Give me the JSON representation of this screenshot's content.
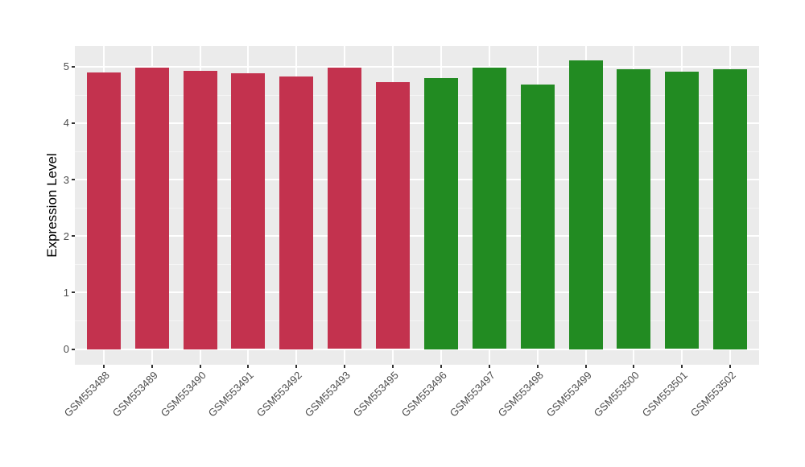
{
  "chart_data": {
    "type": "bar",
    "title": "",
    "xlabel": "",
    "ylabel": "Expression Level",
    "categories": [
      "GSM553488",
      "GSM553489",
      "GSM553490",
      "GSM553491",
      "GSM553492",
      "GSM553493",
      "GSM553495",
      "GSM553496",
      "GSM553497",
      "GSM553498",
      "GSM553499",
      "GSM553500",
      "GSM553501",
      "GSM553502"
    ],
    "values": [
      4.9,
      4.98,
      4.93,
      4.88,
      4.83,
      4.98,
      4.72,
      4.8,
      4.98,
      4.68,
      5.11,
      4.95,
      4.91,
      4.96
    ],
    "bar_colors": [
      "#C3324E",
      "#C3324E",
      "#C3324E",
      "#C3324E",
      "#C3324E",
      "#C3324E",
      "#C3324E",
      "#228B22",
      "#228B22",
      "#228B22",
      "#228B22",
      "#228B22",
      "#228B22",
      "#228B22"
    ],
    "group_colors": {
      "left_group": "#C3324E",
      "right_group": "#228B22"
    },
    "yticks": [
      0,
      1,
      2,
      3,
      4,
      5
    ],
    "ylim": [
      0,
      5.11
    ],
    "minor_grid_step": 0.5,
    "grid": true,
    "legend": "none",
    "styles": {
      "panel_bg": "#EBEBEB",
      "grid_major": "#FFFFFF",
      "grid_minor": "#F5F5F5",
      "tick_color": "#333333",
      "tick_label_color": "#4D4D4D",
      "axis_title_color": "#000000"
    }
  }
}
